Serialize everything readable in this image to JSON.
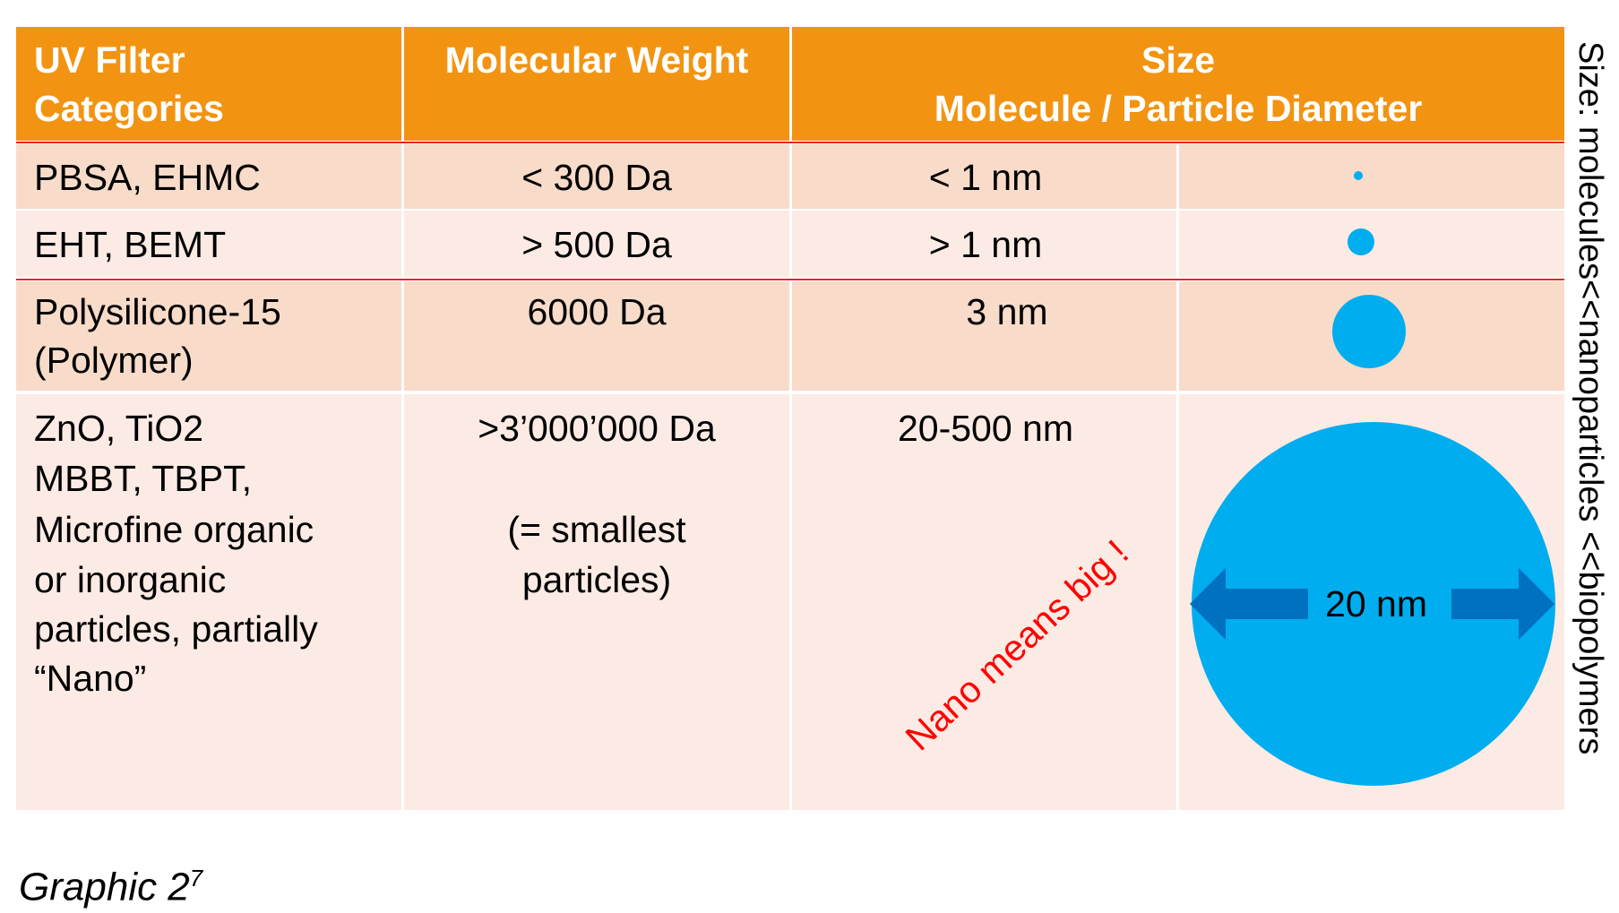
{
  "table": {
    "header": {
      "categories": [
        "UV Filter",
        "Categories"
      ],
      "molecular_weight": "Molecular Weight",
      "size": [
        "Size",
        "Molecule / Particle Diameter"
      ]
    },
    "rows": [
      {
        "category": [
          "PBSA, EHMC"
        ],
        "molecular_weight": [
          "< 300 Da"
        ],
        "size": "< 1 nm"
      },
      {
        "category": [
          "EHT, BEMT"
        ],
        "molecular_weight": [
          "> 500 Da"
        ],
        "size": "> 1 nm"
      },
      {
        "category": [
          "Polysilicone-15",
          "(Polymer)"
        ],
        "molecular_weight": [
          "6000 Da"
        ],
        "size": "3 nm"
      },
      {
        "category": [
          "ZnO, TiO2",
          "MBBT, TBPT,",
          "Microfine organic",
          "or inorganic",
          "particles, partially",
          "“Nano”"
        ],
        "molecular_weight": [
          ">3’000’000 Da"
        ],
        "note": [
          "(= smallest",
          "particles)"
        ],
        "size": "20-500 nm",
        "diameter_label": "20 nm"
      }
    ],
    "annotation": "Nano means big !",
    "side_label": "Size: molecules<<nanoparticles <<biopolymers"
  },
  "caption": {
    "text": "Graphic 2",
    "ref": "7"
  }
}
